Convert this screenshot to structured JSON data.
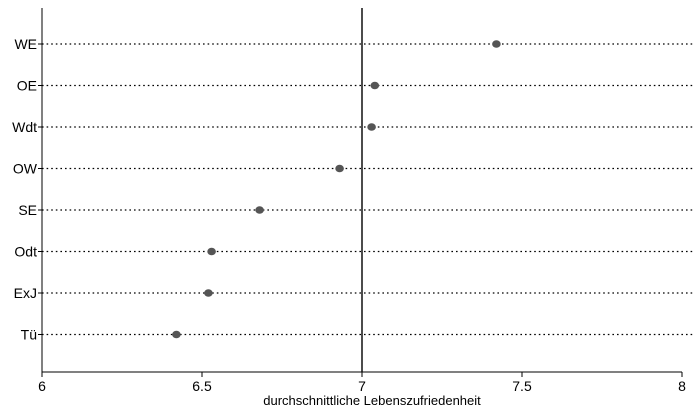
{
  "chart_data": {
    "type": "dot",
    "categories": [
      "WE",
      "OE",
      "Wdt",
      "OW",
      "SE",
      "Odt",
      "ExJ",
      "Tü"
    ],
    "values": [
      7.42,
      7.04,
      7.03,
      6.93,
      6.68,
      6.53,
      6.52,
      6.42
    ],
    "xlabel": "durchschnittliche Lebenszufriedenheit",
    "xlim": [
      6,
      8
    ],
    "xticks": [
      6,
      6.5,
      7,
      7.5,
      8
    ],
    "xtick_labels": [
      "6",
      "6.5",
      "7",
      "7.5",
      "8"
    ],
    "reference_line": 7,
    "grid": "dotted horizontal lines per category",
    "colors": {
      "marker": "#555555",
      "axis": "#000000",
      "grid": "#000000"
    }
  }
}
